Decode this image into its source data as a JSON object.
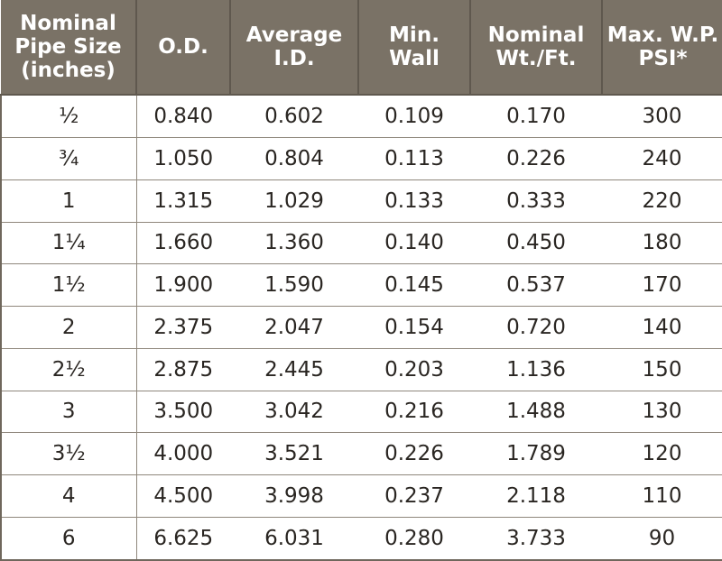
{
  "table": {
    "headers": [
      [
        "Nominal",
        "Pipe Size",
        "(inches)"
      ],
      [
        "O.D."
      ],
      [
        "Average",
        "I.D."
      ],
      [
        "Min.",
        "Wall"
      ],
      [
        "Nominal",
        "Wt./Ft."
      ],
      [
        "Max. W.P.",
        "PSI*"
      ]
    ],
    "rows": [
      [
        "½",
        "0.840",
        "0.602",
        "0.109",
        "0.170",
        "300"
      ],
      [
        "¾",
        "1.050",
        "0.804",
        "0.113",
        "0.226",
        "240"
      ],
      [
        "1",
        "1.315",
        "1.029",
        "0.133",
        "0.333",
        "220"
      ],
      [
        "1¼",
        "1.660",
        "1.360",
        "0.140",
        "0.450",
        "180"
      ],
      [
        "1½",
        "1.900",
        "1.590",
        "0.145",
        "0.537",
        "170"
      ],
      [
        "2",
        "2.375",
        "2.047",
        "0.154",
        "0.720",
        "140"
      ],
      [
        "2½",
        "2.875",
        "2.445",
        "0.203",
        "1.136",
        "150"
      ],
      [
        "3",
        "3.500",
        "3.042",
        "0.216",
        "1.488",
        "130"
      ],
      [
        "3½",
        "4.000",
        "3.521",
        "0.226",
        "1.789",
        "120"
      ],
      [
        "4",
        "4.500",
        "3.998",
        "0.237",
        "2.118",
        "110"
      ],
      [
        "6",
        "6.625",
        "6.031",
        "0.280",
        "3.733",
        "90"
      ]
    ]
  },
  "colors": {
    "header_background": "#7a7266",
    "header_text": "#ffffff",
    "cell_text": "#2a2622",
    "grid_line": "#8f877c"
  }
}
